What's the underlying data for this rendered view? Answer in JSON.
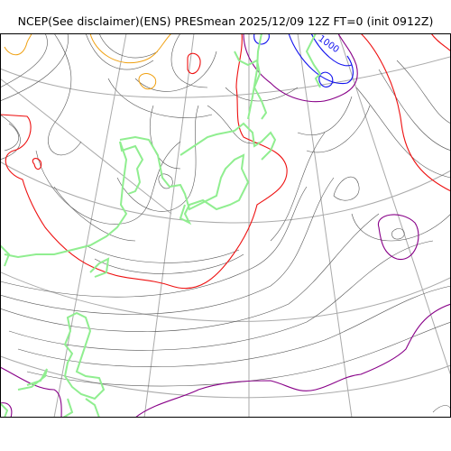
{
  "title": "NCEP(See disclaimer)(ENS) PRESmean 2025/12/09 12Z FT=0 (init 0912Z)",
  "map_labels": {
    "high_contour_label": "1000"
  },
  "colors": {
    "isobar_thin": "#555555",
    "isobar_red": "#ee1111",
    "isobar_purple": "#880088",
    "isobar_blue": "#1111ee",
    "isobar_orange": "#f0a010",
    "coastline": "#90ee90",
    "graticule": "#aaaaaa",
    "frame": "#000000"
  }
}
